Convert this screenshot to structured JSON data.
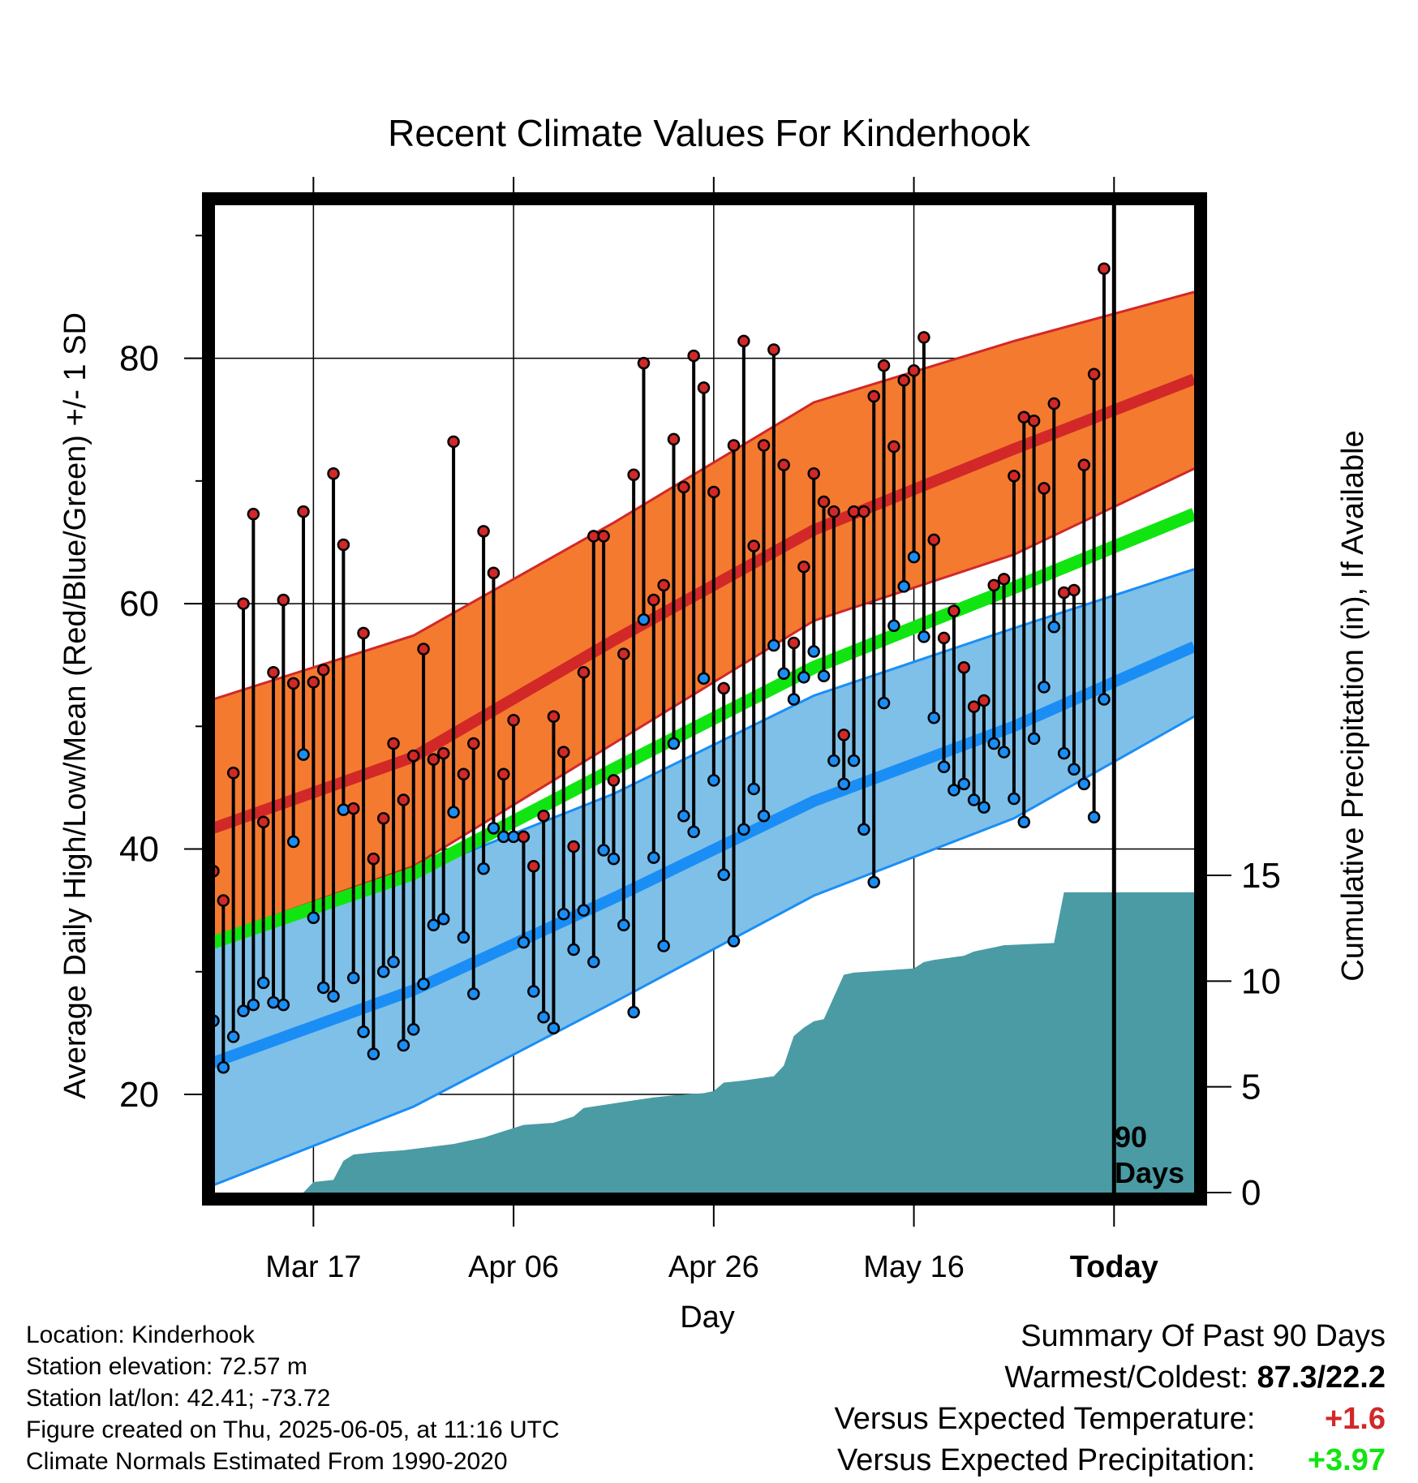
{
  "chart_data": {
    "type": "line",
    "title": "Recent Climate Values For Kinderhook",
    "xlabel": "Day",
    "ylabel": "Average Daily High/Low/Mean (Red/Blue/Green) +/- 1 SD",
    "ylabel_right": "Cumulative Precipitation (in), If Available",
    "x_range": [
      "2025-03-07",
      "2025-06-13"
    ],
    "ylim": [
      12,
      93
    ],
    "y2lim": [
      0,
      47
    ],
    "yticks": [
      20,
      40,
      60,
      80
    ],
    "y2ticks": [
      0,
      5,
      10,
      15
    ],
    "xticks": [
      {
        "date": "2025-03-17",
        "label": "Mar 17"
      },
      {
        "date": "2025-04-06",
        "label": "Apr 06"
      },
      {
        "date": "2025-04-26",
        "label": "Apr 26"
      },
      {
        "date": "2025-05-16",
        "label": "May 16"
      },
      {
        "date": "2025-06-05",
        "label": "Today"
      }
    ],
    "grid": true,
    "today": {
      "date": "2025-06-05",
      "label_line1": "90",
      "label_line2": "Days"
    },
    "normals": {
      "dates": [
        "2025-03-07",
        "2025-03-27",
        "2025-04-16",
        "2025-05-06",
        "2025-05-26",
        "2025-06-13"
      ],
      "high_mean": [
        41.7,
        47.5,
        57.0,
        66.0,
        72.6,
        78.3
      ],
      "high_upper": [
        52.2,
        57.4,
        66.6,
        76.4,
        81.4,
        85.4
      ],
      "high_lower": [
        32.8,
        38.6,
        48.6,
        58.6,
        64.0,
        71.0
      ],
      "mean": [
        32.4,
        38.0,
        46.5,
        54.8,
        61.3,
        67.3
      ],
      "low_mean": [
        22.6,
        28.5,
        36.0,
        43.9,
        50.0,
        56.5
      ],
      "low_upper": [
        34.0,
        38.0,
        44.5,
        52.5,
        58.0,
        62.8
      ],
      "low_lower": [
        12.6,
        19.0,
        27.5,
        36.2,
        42.5,
        50.8
      ]
    },
    "series": [
      {
        "name": "High",
        "dates": [
          "2025-03-07",
          "2025-03-08",
          "2025-03-09",
          "2025-03-10",
          "2025-03-11",
          "2025-03-12",
          "2025-03-13",
          "2025-03-14",
          "2025-03-15",
          "2025-03-16",
          "2025-03-17",
          "2025-03-18",
          "2025-03-19",
          "2025-03-20",
          "2025-03-21",
          "2025-03-22",
          "2025-03-23",
          "2025-03-24",
          "2025-03-25",
          "2025-03-26",
          "2025-03-27",
          "2025-03-28",
          "2025-03-29",
          "2025-03-30",
          "2025-03-31",
          "2025-04-01",
          "2025-04-02",
          "2025-04-03",
          "2025-04-04",
          "2025-04-05",
          "2025-04-06",
          "2025-04-07",
          "2025-04-08",
          "2025-04-09",
          "2025-04-10",
          "2025-04-11",
          "2025-04-12",
          "2025-04-13",
          "2025-04-14",
          "2025-04-15",
          "2025-04-16",
          "2025-04-17",
          "2025-04-18",
          "2025-04-19",
          "2025-04-20",
          "2025-04-21",
          "2025-04-22",
          "2025-04-23",
          "2025-04-24",
          "2025-04-25",
          "2025-04-26",
          "2025-04-27",
          "2025-04-28",
          "2025-04-29",
          "2025-04-30",
          "2025-05-01",
          "2025-05-02",
          "2025-05-03",
          "2025-05-04",
          "2025-05-05",
          "2025-05-06",
          "2025-05-07",
          "2025-05-08",
          "2025-05-09",
          "2025-05-10",
          "2025-05-11",
          "2025-05-12",
          "2025-05-13",
          "2025-05-14",
          "2025-05-15",
          "2025-05-16",
          "2025-05-17",
          "2025-05-18",
          "2025-05-19",
          "2025-05-20",
          "2025-05-21",
          "2025-05-22",
          "2025-05-23",
          "2025-05-24",
          "2025-05-25",
          "2025-05-26",
          "2025-05-27",
          "2025-05-28",
          "2025-05-29",
          "2025-05-30",
          "2025-05-31",
          "2025-06-01",
          "2025-06-02",
          "2025-06-03",
          "2025-06-04"
        ],
        "values": [
          38.2,
          35.8,
          46.2,
          60.0,
          67.3,
          42.2,
          54.4,
          60.3,
          53.5,
          67.5,
          53.6,
          54.6,
          70.6,
          64.8,
          43.3,
          57.6,
          39.2,
          42.5,
          48.6,
          44.0,
          47.6,
          56.3,
          47.3,
          47.8,
          73.2,
          46.1,
          48.6,
          65.9,
          62.5,
          46.1,
          50.5,
          41.0,
          38.6,
          42.7,
          50.8,
          47.9,
          40.2,
          54.4,
          65.5,
          65.5,
          45.6,
          55.9,
          70.5,
          79.6,
          60.3,
          61.5,
          73.4,
          69.5,
          80.2,
          77.6,
          69.1,
          53.1,
          72.9,
          81.4,
          64.7,
          72.9,
          80.7,
          71.3,
          56.8,
          63.0,
          70.6,
          68.3,
          67.5,
          49.3,
          67.5,
          67.5,
          76.9,
          79.4,
          72.8,
          78.2,
          79.0,
          81.7,
          65.2,
          57.2,
          59.4,
          54.8,
          51.6,
          52.1,
          61.5,
          62.0,
          70.4,
          75.2,
          74.9,
          69.4,
          76.3,
          60.9,
          61.1,
          71.3,
          78.7,
          87.3
        ]
      },
      {
        "name": "Low",
        "dates": [
          "2025-03-07",
          "2025-03-08",
          "2025-03-09",
          "2025-03-10",
          "2025-03-11",
          "2025-03-12",
          "2025-03-13",
          "2025-03-14",
          "2025-03-15",
          "2025-03-16",
          "2025-03-17",
          "2025-03-18",
          "2025-03-19",
          "2025-03-20",
          "2025-03-21",
          "2025-03-22",
          "2025-03-23",
          "2025-03-24",
          "2025-03-25",
          "2025-03-26",
          "2025-03-27",
          "2025-03-28",
          "2025-03-29",
          "2025-03-30",
          "2025-03-31",
          "2025-04-01",
          "2025-04-02",
          "2025-04-03",
          "2025-04-04",
          "2025-04-05",
          "2025-04-06",
          "2025-04-07",
          "2025-04-08",
          "2025-04-09",
          "2025-04-10",
          "2025-04-11",
          "2025-04-12",
          "2025-04-13",
          "2025-04-14",
          "2025-04-15",
          "2025-04-16",
          "2025-04-17",
          "2025-04-18",
          "2025-04-19",
          "2025-04-20",
          "2025-04-21",
          "2025-04-22",
          "2025-04-23",
          "2025-04-24",
          "2025-04-25",
          "2025-04-26",
          "2025-04-27",
          "2025-04-28",
          "2025-04-29",
          "2025-04-30",
          "2025-05-01",
          "2025-05-02",
          "2025-05-03",
          "2025-05-04",
          "2025-05-05",
          "2025-05-06",
          "2025-05-07",
          "2025-05-08",
          "2025-05-09",
          "2025-05-10",
          "2025-05-11",
          "2025-05-12",
          "2025-05-13",
          "2025-05-14",
          "2025-05-15",
          "2025-05-16",
          "2025-05-17",
          "2025-05-18",
          "2025-05-19",
          "2025-05-20",
          "2025-05-21",
          "2025-05-22",
          "2025-05-23",
          "2025-05-24",
          "2025-05-25",
          "2025-05-26",
          "2025-05-27",
          "2025-05-28",
          "2025-05-29",
          "2025-05-30",
          "2025-05-31",
          "2025-06-01",
          "2025-06-02",
          "2025-06-03",
          "2025-06-04"
        ],
        "values": [
          26.0,
          22.2,
          24.7,
          26.8,
          27.3,
          29.1,
          27.5,
          27.3,
          40.6,
          47.7,
          34.4,
          28.7,
          28.0,
          43.2,
          29.5,
          25.1,
          23.3,
          30.0,
          30.8,
          24.0,
          25.3,
          29.0,
          33.8,
          34.3,
          43.0,
          32.8,
          28.2,
          38.4,
          41.7,
          41.0,
          41.0,
          32.4,
          28.4,
          26.3,
          25.4,
          34.7,
          31.8,
          35.0,
          30.8,
          39.9,
          39.2,
          33.8,
          26.7,
          58.7,
          39.3,
          32.1,
          48.6,
          42.7,
          41.4,
          53.9,
          45.6,
          37.9,
          32.5,
          41.6,
          44.9,
          42.7,
          56.6,
          54.3,
          52.2,
          54.0,
          56.1,
          54.1,
          47.2,
          45.3,
          47.2,
          41.6,
          37.3,
          51.9,
          58.2,
          61.4,
          63.8,
          57.3,
          50.7,
          46.7,
          44.8,
          45.3,
          44.0,
          43.4,
          48.6,
          47.9,
          44.1,
          42.2,
          49.0,
          53.2,
          58.1,
          47.8,
          46.5,
          45.3,
          42.6,
          52.2
        ]
      }
    ],
    "precip_cumulative": {
      "dates": [
        "2025-03-16",
        "2025-03-17",
        "2025-03-19",
        "2025-03-20",
        "2025-03-21",
        "2025-03-23",
        "2025-03-26",
        "2025-03-31",
        "2025-04-03",
        "2025-04-05",
        "2025-04-07",
        "2025-04-10",
        "2025-04-12",
        "2025-04-13",
        "2025-04-20",
        "2025-04-22",
        "2025-04-25",
        "2025-04-26",
        "2025-04-27",
        "2025-04-29",
        "2025-05-02",
        "2025-05-03",
        "2025-05-04",
        "2025-05-05",
        "2025-05-06",
        "2025-05-07",
        "2025-05-09",
        "2025-05-10",
        "2025-05-16",
        "2025-05-17",
        "2025-05-18",
        "2025-05-21",
        "2025-05-22",
        "2025-05-24",
        "2025-05-25",
        "2025-05-30",
        "2025-05-31",
        "2025-06-13"
      ],
      "values": [
        0.0,
        0.5,
        0.6,
        1.5,
        1.8,
        1.9,
        2.0,
        2.3,
        2.6,
        2.9,
        3.2,
        3.3,
        3.6,
        4.0,
        4.5,
        4.6,
        4.7,
        4.8,
        5.2,
        5.3,
        5.5,
        6.0,
        7.4,
        7.8,
        8.1,
        8.2,
        10.3,
        10.4,
        10.6,
        10.9,
        11.0,
        11.2,
        11.4,
        11.6,
        11.7,
        11.8,
        14.2,
        14.2
      ]
    }
  },
  "footer": {
    "location": "Location: Kinderhook",
    "elevation": "Station elevation: 72.57 m",
    "latlon": "Station lat/lon: 42.41; -73.72",
    "created": "Figure created on Thu, 2025-06-05, at 11:16 UTC",
    "normals": "Climate Normals Estimated From 1990-2020"
  },
  "summary": {
    "heading": "Summary Of Past 90 Days",
    "warm_cold_label": "Warmest/Coldest:",
    "warm_cold_value": "87.3/22.2",
    "temp_label": "Versus Expected Temperature:",
    "temp_value": "+1.6",
    "precip_label": "Versus Expected Precipitation:",
    "precip_value": "+3.97"
  },
  "colors": {
    "high_band": "#f47a30",
    "high_mean": "#d22828",
    "mean_line": "#11e511",
    "low_band": "#7fc0e8",
    "low_mean": "#1a8ef5",
    "precip": "#4a9ba4",
    "high_marker": "#d22828",
    "low_marker": "#1a8ef5",
    "temp_diff": "#d22828",
    "precip_diff": "#11e511"
  }
}
